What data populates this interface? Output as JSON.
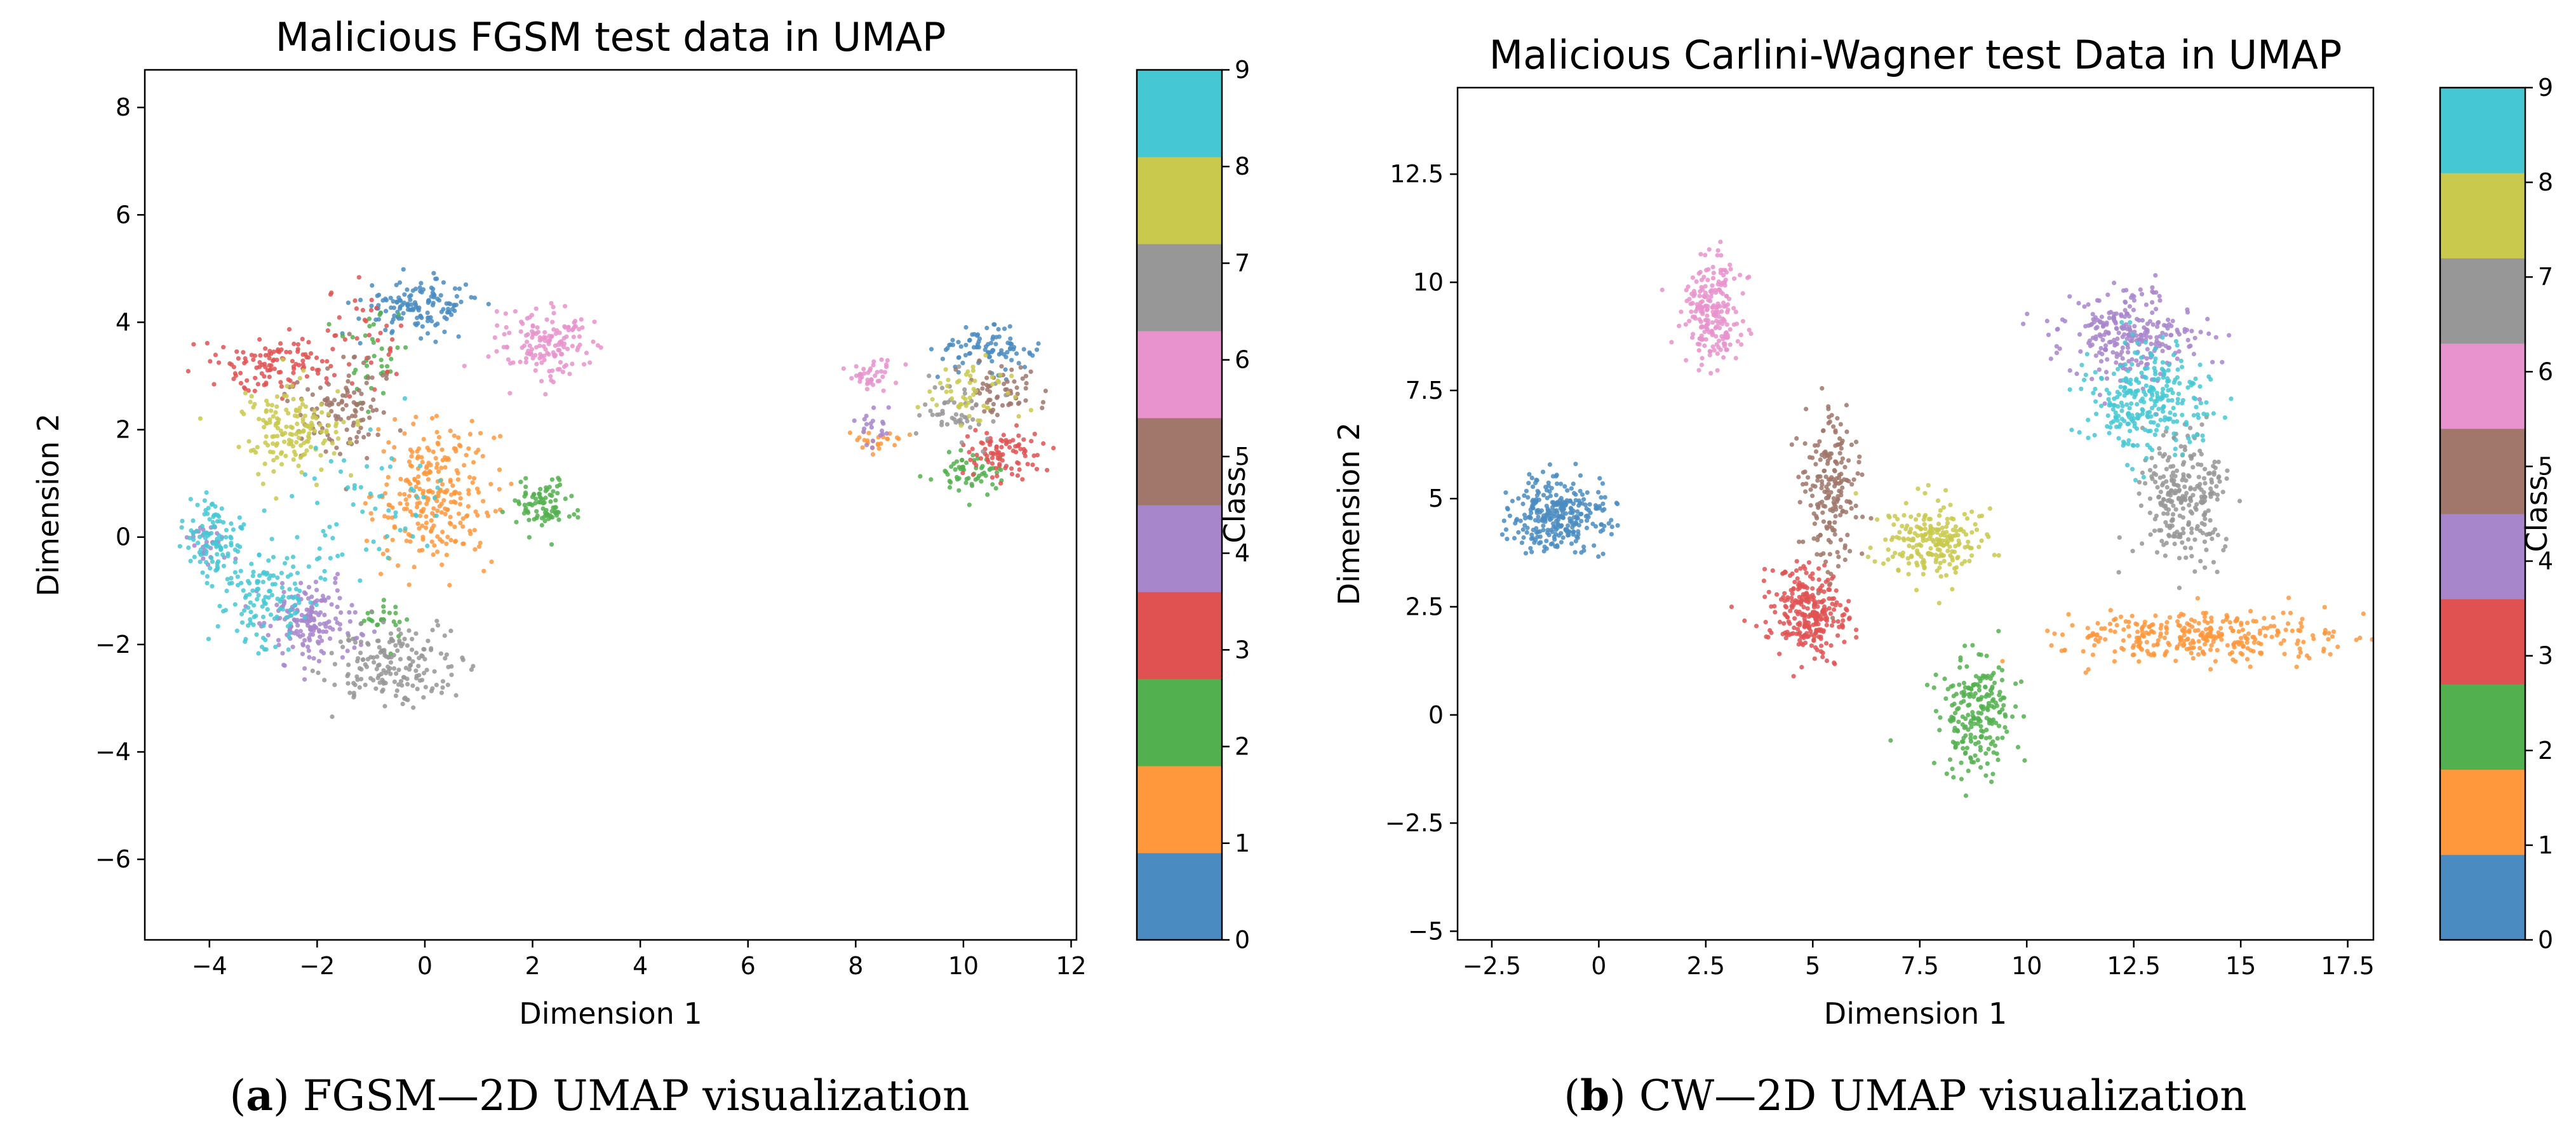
{
  "colors": [
    "#4a8cc1",
    "#ff983d",
    "#53b04f",
    "#e05252",
    "#a886cb",
    "#a0776a",
    "#e893cd",
    "#979797",
    "#c9c94d",
    "#45c8d4"
  ],
  "chart_data": [
    {
      "type": "scatter",
      "title": "Malicious FGSM test data in UMAP",
      "xlabel": "Dimension 1",
      "ylabel": "Dimension 2",
      "xlim": [
        -5.2,
        12.1
      ],
      "ylim": [
        -7.5,
        8.7
      ],
      "xticks": [
        -4,
        -2,
        0,
        2,
        4,
        6,
        8,
        10,
        12
      ],
      "yticks": [
        -6,
        -4,
        -2,
        0,
        2,
        4,
        6,
        8
      ],
      "colorbar": {
        "label": "Class",
        "ticks": [
          0,
          1,
          2,
          3,
          4,
          5,
          6,
          7,
          8,
          9
        ],
        "range": [
          0,
          9
        ]
      },
      "caption": {
        "letter": "a",
        "text": " FGSM—2D UMAP visualization"
      },
      "clusters": [
        {
          "class": 0,
          "cx": -0.1,
          "cy": 4.3,
          "sx": 0.55,
          "sy": 0.25,
          "n": 140
        },
        {
          "class": 0,
          "cx": 10.4,
          "cy": 3.5,
          "sx": 0.45,
          "sy": 0.18,
          "n": 90
        },
        {
          "class": 1,
          "cx": 0.2,
          "cy": 0.8,
          "sx": 0.55,
          "sy": 0.65,
          "n": 260
        },
        {
          "class": 1,
          "cx": 8.3,
          "cy": 1.8,
          "sx": 0.3,
          "sy": 0.12,
          "n": 25
        },
        {
          "class": 2,
          "cx": 2.2,
          "cy": 0.6,
          "sx": 0.3,
          "sy": 0.25,
          "n": 90
        },
        {
          "class": 2,
          "cx": 10.1,
          "cy": 1.2,
          "sx": 0.35,
          "sy": 0.2,
          "n": 60
        },
        {
          "class": 2,
          "cx": -0.9,
          "cy": 3.5,
          "sx": 0.3,
          "sy": 0.5,
          "n": 35
        },
        {
          "class": 2,
          "cx": -0.7,
          "cy": -1.5,
          "sx": 0.25,
          "sy": 0.2,
          "n": 25
        },
        {
          "class": 3,
          "cx": -2.8,
          "cy": 3.2,
          "sx": 0.5,
          "sy": 0.25,
          "n": 110
        },
        {
          "class": 3,
          "cx": 10.8,
          "cy": 1.6,
          "sx": 0.35,
          "sy": 0.25,
          "n": 90
        },
        {
          "class": 3,
          "cx": -1.2,
          "cy": 3.6,
          "sx": 0.4,
          "sy": 0.5,
          "n": 40
        },
        {
          "class": 4,
          "cx": -2.1,
          "cy": -1.6,
          "sx": 0.45,
          "sy": 0.35,
          "n": 170
        },
        {
          "class": 4,
          "cx": -4.0,
          "cy": -0.1,
          "sx": 0.2,
          "sy": 0.2,
          "n": 30
        },
        {
          "class": 4,
          "cx": 8.3,
          "cy": 2.1,
          "sx": 0.2,
          "sy": 0.2,
          "n": 20
        },
        {
          "class": 5,
          "cx": -1.6,
          "cy": 2.5,
          "sx": 0.5,
          "sy": 0.5,
          "n": 110
        },
        {
          "class": 5,
          "cx": 10.8,
          "cy": 2.7,
          "sx": 0.35,
          "sy": 0.25,
          "n": 60
        },
        {
          "class": 6,
          "cx": 2.3,
          "cy": 3.6,
          "sx": 0.5,
          "sy": 0.35,
          "n": 150
        },
        {
          "class": 6,
          "cx": 8.3,
          "cy": 3.0,
          "sx": 0.2,
          "sy": 0.15,
          "n": 40
        },
        {
          "class": 7,
          "cx": -0.6,
          "cy": -2.4,
          "sx": 0.6,
          "sy": 0.35,
          "n": 180
        },
        {
          "class": 7,
          "cx": 9.8,
          "cy": 2.4,
          "sx": 0.4,
          "sy": 0.3,
          "n": 50
        },
        {
          "class": 8,
          "cx": -2.5,
          "cy": 2.0,
          "sx": 0.45,
          "sy": 0.4,
          "n": 160
        },
        {
          "class": 8,
          "cx": 10.1,
          "cy": 2.7,
          "sx": 0.4,
          "sy": 0.3,
          "n": 50
        },
        {
          "class": 9,
          "cx": -3.9,
          "cy": 0.0,
          "sx": 0.3,
          "sy": 0.35,
          "n": 110
        },
        {
          "class": 9,
          "cx": -2.9,
          "cy": -1.2,
          "sx": 0.4,
          "sy": 0.5,
          "n": 130
        },
        {
          "class": 9,
          "cx": -1.0,
          "cy": 0.5,
          "sx": 0.7,
          "sy": 0.7,
          "n": 60
        }
      ]
    },
    {
      "type": "scatter",
      "title": "Malicious Carlini-Wagner test Data in UMAP",
      "xlabel": "Dimension 1",
      "ylabel": "Dimension 2",
      "xlim": [
        -3.3,
        18.1
      ],
      "ylim": [
        -5.2,
        14.5
      ],
      "xticks": [
        -2.5,
        0.0,
        2.5,
        5.0,
        7.5,
        10.0,
        12.5,
        15.0,
        17.5
      ],
      "yticks": [
        -5.0,
        -2.5,
        0.0,
        2.5,
        5.0,
        7.5,
        10.0,
        12.5
      ],
      "colorbar": {
        "label": "Class",
        "ticks": [
          0,
          1,
          2,
          3,
          4,
          5,
          6,
          7,
          8,
          9
        ],
        "range": [
          0,
          9
        ]
      },
      "caption": {
        "letter": "b",
        "text": " CW—2D UMAP visualization"
      },
      "clusters": [
        {
          "class": 0,
          "cx": -0.9,
          "cy": 4.6,
          "sx": 0.55,
          "sy": 0.45,
          "n": 300
        },
        {
          "class": 1,
          "cx": 14.0,
          "cy": 1.8,
          "sx": 1.6,
          "sy": 0.28,
          "n": 320
        },
        {
          "class": 2,
          "cx": 8.8,
          "cy": 0.0,
          "sx": 0.45,
          "sy": 0.65,
          "n": 220
        },
        {
          "class": 3,
          "cx": 4.9,
          "cy": 2.3,
          "sx": 0.45,
          "sy": 0.5,
          "n": 280
        },
        {
          "class": 4,
          "cx": 12.4,
          "cy": 8.8,
          "sx": 0.8,
          "sy": 0.55,
          "n": 270
        },
        {
          "class": 5,
          "cx": 5.4,
          "cy": 5.3,
          "sx": 0.35,
          "sy": 1.0,
          "n": 200
        },
        {
          "class": 6,
          "cx": 2.7,
          "cy": 9.3,
          "sx": 0.35,
          "sy": 0.65,
          "n": 220
        },
        {
          "class": 7,
          "cx": 13.6,
          "cy": 5.0,
          "sx": 0.5,
          "sy": 0.8,
          "n": 260
        },
        {
          "class": 8,
          "cx": 7.8,
          "cy": 4.0,
          "sx": 0.65,
          "sy": 0.45,
          "n": 220
        },
        {
          "class": 9,
          "cx": 12.8,
          "cy": 7.2,
          "sx": 0.7,
          "sy": 0.6,
          "n": 280
        }
      ]
    }
  ]
}
